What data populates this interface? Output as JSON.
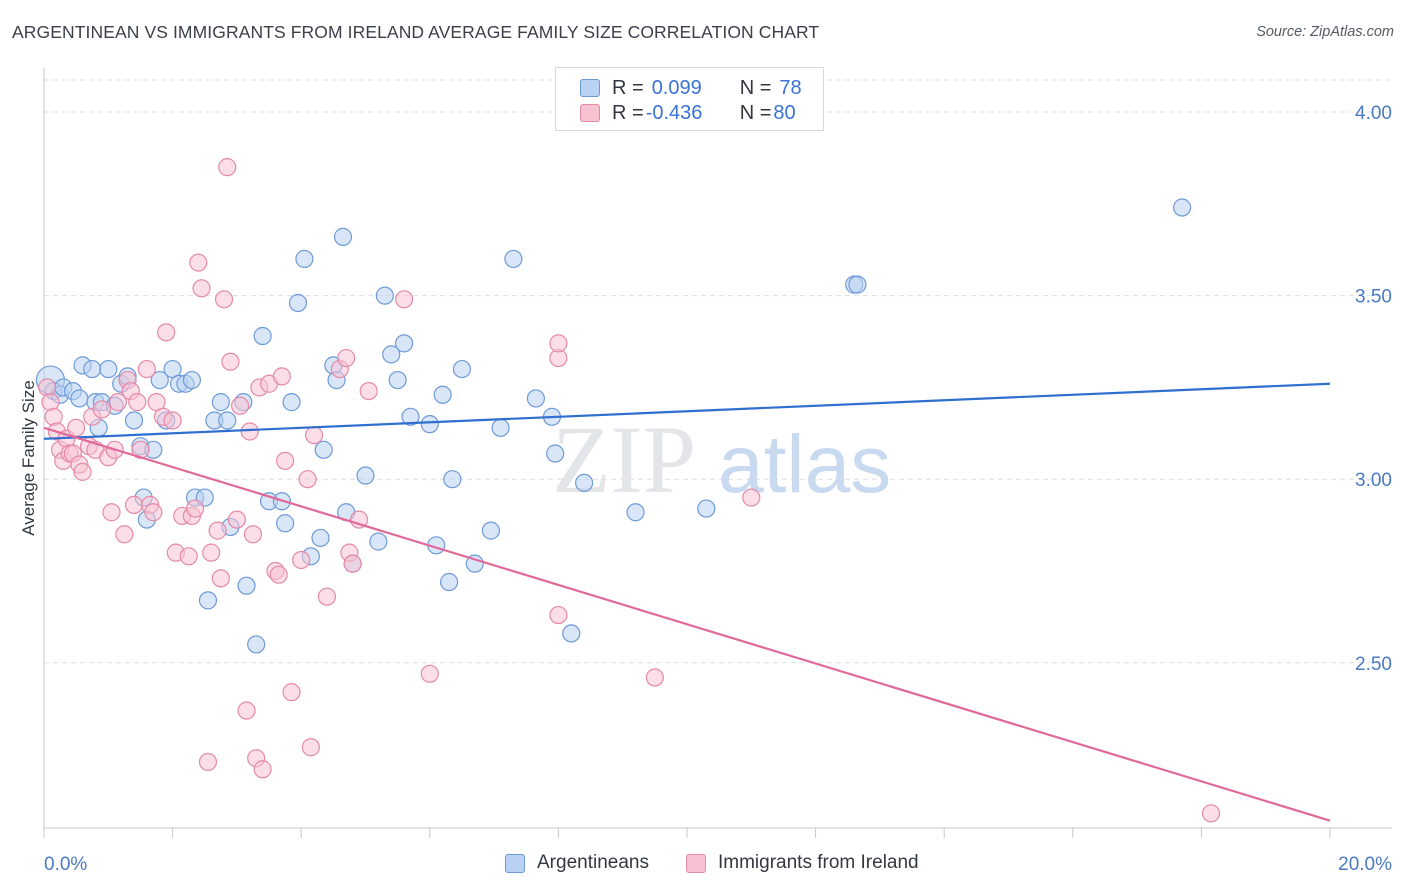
{
  "title": "ARGENTINEAN VS IMMIGRANTS FROM IRELAND AVERAGE FAMILY SIZE CORRELATION CHART",
  "source": "Source: ZipAtlas.com",
  "watermark": {
    "zip": "ZIP",
    "atlas": "atlas"
  },
  "legend_stats": [
    {
      "r_label": "R = ",
      "r_value": "0.099",
      "n_label": "N = ",
      "n_value": "78"
    },
    {
      "r_label": "R = ",
      "r_value": "-0.436",
      "n_label": "N = ",
      "n_value": "80"
    }
  ],
  "colors": {
    "blue_fill": "#b9d1f2",
    "blue_stroke": "#6e9ad8",
    "blue_line": "#2f6fcf",
    "pink_fill": "#f7c3d3",
    "pink_stroke": "#e48aa8",
    "pink_line": "#e0699a",
    "tick_text": "#4a7ac4",
    "grid": "#dcdfe4"
  },
  "chart_data": {
    "type": "scatter",
    "title": "ARGENTINEAN VS IMMIGRANTS FROM IRELAND AVERAGE FAMILY SIZE CORRELATION CHART",
    "xlabel": "",
    "ylabel": "Average Family Size",
    "xlim": [
      0,
      20
    ],
    "ylim": [
      2.05,
      4.12
    ],
    "x_tick_labels": [
      {
        "x": 0,
        "label": "0.0%"
      },
      {
        "x": 20,
        "label": "20.0%"
      }
    ],
    "y_tick_labels": [
      {
        "y": 2.5,
        "label": "2.50"
      },
      {
        "y": 3.0,
        "label": "3.00"
      },
      {
        "y": 3.5,
        "label": "3.50"
      },
      {
        "y": 4.0,
        "label": "4.00"
      }
    ],
    "grid": true,
    "legend_position": "bottom-center",
    "series": [
      {
        "name": "Argentineans",
        "color": "#6e9ad8",
        "trend": {
          "x": [
            0,
            20
          ],
          "y": [
            3.11,
            3.26
          ]
        },
        "points": [
          [
            0.1,
            3.27
          ],
          [
            0.15,
            3.24
          ],
          [
            0.25,
            3.23
          ],
          [
            0.3,
            3.25
          ],
          [
            0.45,
            3.24
          ],
          [
            0.55,
            3.22
          ],
          [
            0.6,
            3.31
          ],
          [
            0.75,
            3.3
          ],
          [
            0.8,
            3.21
          ],
          [
            0.85,
            3.14
          ],
          [
            0.9,
            3.21
          ],
          [
            1.0,
            3.3
          ],
          [
            1.1,
            3.2
          ],
          [
            1.2,
            3.26
          ],
          [
            1.3,
            3.28
          ],
          [
            1.4,
            3.16
          ],
          [
            1.5,
            3.09
          ],
          [
            1.55,
            2.95
          ],
          [
            1.6,
            2.89
          ],
          [
            1.7,
            3.08
          ],
          [
            1.8,
            3.27
          ],
          [
            1.9,
            3.16
          ],
          [
            2.0,
            3.3
          ],
          [
            2.1,
            3.26
          ],
          [
            2.2,
            3.26
          ],
          [
            2.3,
            3.27
          ],
          [
            2.35,
            2.95
          ],
          [
            2.5,
            2.95
          ],
          [
            2.55,
            2.67
          ],
          [
            2.65,
            3.16
          ],
          [
            2.75,
            3.21
          ],
          [
            2.85,
            3.16
          ],
          [
            2.9,
            2.87
          ],
          [
            3.1,
            3.21
          ],
          [
            3.15,
            2.71
          ],
          [
            3.3,
            2.55
          ],
          [
            3.4,
            3.39
          ],
          [
            3.5,
            2.94
          ],
          [
            3.7,
            2.94
          ],
          [
            3.75,
            2.88
          ],
          [
            3.85,
            3.21
          ],
          [
            3.95,
            3.48
          ],
          [
            4.05,
            3.6
          ],
          [
            4.15,
            2.79
          ],
          [
            4.3,
            2.84
          ],
          [
            4.35,
            3.08
          ],
          [
            4.5,
            3.31
          ],
          [
            4.55,
            3.27
          ],
          [
            4.65,
            3.66
          ],
          [
            4.7,
            2.91
          ],
          [
            4.8,
            2.77
          ],
          [
            5.0,
            3.01
          ],
          [
            5.2,
            2.83
          ],
          [
            5.3,
            3.5
          ],
          [
            5.4,
            3.34
          ],
          [
            5.5,
            3.27
          ],
          [
            5.6,
            3.37
          ],
          [
            5.7,
            3.17
          ],
          [
            6.0,
            3.15
          ],
          [
            6.1,
            2.82
          ],
          [
            6.2,
            3.23
          ],
          [
            6.3,
            2.72
          ],
          [
            6.35,
            3.0
          ],
          [
            6.5,
            3.3
          ],
          [
            6.7,
            2.77
          ],
          [
            6.95,
            2.86
          ],
          [
            7.1,
            3.14
          ],
          [
            7.3,
            3.6
          ],
          [
            7.65,
            3.22
          ],
          [
            7.9,
            3.17
          ],
          [
            7.95,
            3.07
          ],
          [
            8.2,
            2.58
          ],
          [
            8.4,
            2.99
          ],
          [
            9.2,
            2.91
          ],
          [
            10.3,
            2.92
          ],
          [
            12.6,
            3.53
          ],
          [
            12.65,
            3.53
          ],
          [
            17.7,
            3.74
          ]
        ]
      },
      {
        "name": "Immigrants from Ireland",
        "color": "#e48aa8",
        "trend": {
          "x": [
            0,
            20
          ],
          "y": [
            3.14,
            2.07
          ]
        },
        "points": [
          [
            0.05,
            3.25
          ],
          [
            0.1,
            3.21
          ],
          [
            0.15,
            3.17
          ],
          [
            0.2,
            3.13
          ],
          [
            0.25,
            3.08
          ],
          [
            0.3,
            3.05
          ],
          [
            0.35,
            3.11
          ],
          [
            0.4,
            3.07
          ],
          [
            0.45,
            3.07
          ],
          [
            0.5,
            3.14
          ],
          [
            0.55,
            3.04
          ],
          [
            0.6,
            3.02
          ],
          [
            0.7,
            3.09
          ],
          [
            0.75,
            3.17
          ],
          [
            0.8,
            3.08
          ],
          [
            0.9,
            3.19
          ],
          [
            1.0,
            3.06
          ],
          [
            1.05,
            2.91
          ],
          [
            1.1,
            3.08
          ],
          [
            1.15,
            3.21
          ],
          [
            1.25,
            2.85
          ],
          [
            1.3,
            3.27
          ],
          [
            1.35,
            3.24
          ],
          [
            1.4,
            2.93
          ],
          [
            1.45,
            3.21
          ],
          [
            1.5,
            3.08
          ],
          [
            1.6,
            3.3
          ],
          [
            1.65,
            2.93
          ],
          [
            1.7,
            2.91
          ],
          [
            1.75,
            3.21
          ],
          [
            1.85,
            3.17
          ],
          [
            1.9,
            3.4
          ],
          [
            2.0,
            3.16
          ],
          [
            2.05,
            2.8
          ],
          [
            2.15,
            2.9
          ],
          [
            2.25,
            2.79
          ],
          [
            2.3,
            2.9
          ],
          [
            2.35,
            2.92
          ],
          [
            2.4,
            3.59
          ],
          [
            2.45,
            3.52
          ],
          [
            2.55,
            2.23
          ],
          [
            2.6,
            2.8
          ],
          [
            2.7,
            2.86
          ],
          [
            2.75,
            2.73
          ],
          [
            2.8,
            3.49
          ],
          [
            2.85,
            3.85
          ],
          [
            2.9,
            3.32
          ],
          [
            3.0,
            2.89
          ],
          [
            3.05,
            3.2
          ],
          [
            3.15,
            2.37
          ],
          [
            3.2,
            3.13
          ],
          [
            3.25,
            2.85
          ],
          [
            3.3,
            2.24
          ],
          [
            3.35,
            3.25
          ],
          [
            3.4,
            2.21
          ],
          [
            3.5,
            3.26
          ],
          [
            3.6,
            2.75
          ],
          [
            3.65,
            2.74
          ],
          [
            3.7,
            3.28
          ],
          [
            3.75,
            3.05
          ],
          [
            3.85,
            2.42
          ],
          [
            4.0,
            2.78
          ],
          [
            4.1,
            3.0
          ],
          [
            4.15,
            2.27
          ],
          [
            4.2,
            3.12
          ],
          [
            4.4,
            2.68
          ],
          [
            4.6,
            3.3
          ],
          [
            4.7,
            3.33
          ],
          [
            4.75,
            2.8
          ],
          [
            4.8,
            2.77
          ],
          [
            4.9,
            2.89
          ],
          [
            5.05,
            3.24
          ],
          [
            5.6,
            3.49
          ],
          [
            6.0,
            2.47
          ],
          [
            8.0,
            3.33
          ],
          [
            8.0,
            3.37
          ],
          [
            8.0,
            2.63
          ],
          [
            9.5,
            2.46
          ],
          [
            11.0,
            2.95
          ],
          [
            18.15,
            2.09
          ]
        ]
      }
    ]
  }
}
